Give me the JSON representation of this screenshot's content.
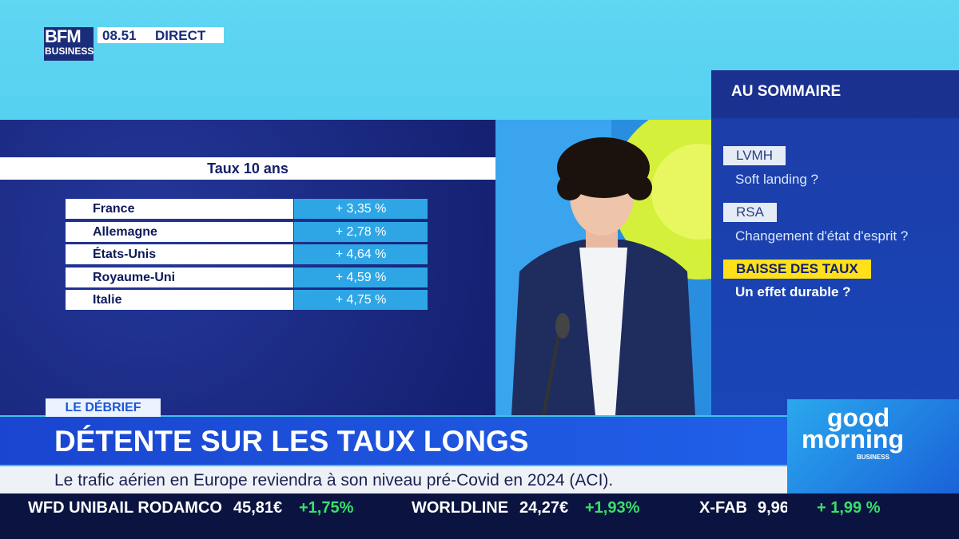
{
  "header": {
    "logo_top": "BFM",
    "logo_bottom": "BUSINESS",
    "time": "08.51",
    "status": "DIRECT"
  },
  "table": {
    "title": "Taux 10 ans",
    "rows": [
      [
        "France",
        "+ 3,35 %"
      ],
      [
        "Allemagne",
        "+ 2,78 %"
      ],
      [
        "États-Unis",
        "+ 4,64 %"
      ],
      [
        "Royaume-Uni",
        "+ 4,59 %"
      ],
      [
        "Italie",
        "+ 4,75 %"
      ]
    ]
  },
  "sidebar": {
    "title": "AU SOMMAIRE",
    "items": [
      {
        "tag": "LVMH",
        "subtitle": "Soft landing ?"
      },
      {
        "tag": "RSA",
        "subtitle": "Changement d'état d'esprit ?"
      },
      {
        "tag": "BAISSE DES TAUX",
        "subtitle": "Un effet durable ?"
      }
    ]
  },
  "lower_third": {
    "tag": "LE DÉBRIEF",
    "headline": "DÉTENTE SUR LES TAUX LONGS",
    "subtitle": "Le trafic aérien en Europe reviendra à son niveau pré-Covid en 2024 (ACI)."
  },
  "ticker": [
    {
      "name": "WFD UNIBAIL RODAMCO",
      "price": "45,81€",
      "change": "+1,75%"
    },
    {
      "name": "WORLDLINE",
      "price": "24,27€",
      "change": "+1,93%"
    },
    {
      "name": "X-FAB",
      "price": "9,96",
      "change": "+ 1,99 %"
    }
  ],
  "show_logo": {
    "line1": "good",
    "line2": "morning",
    "line3": "BUSINESS"
  }
}
